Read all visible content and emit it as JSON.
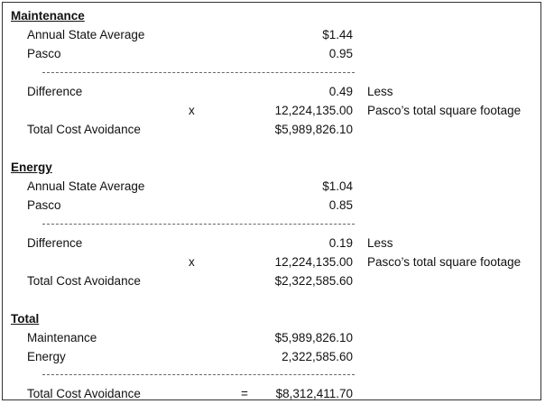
{
  "maintenance": {
    "heading": "Maintenance",
    "state_avg_label": "Annual State Average",
    "state_avg_value": "$1.44",
    "pasco_label": "Pasco",
    "pasco_value": "0.95",
    "difference_label": "Difference",
    "difference_value": "0.49",
    "difference_note": "Less",
    "multiply_sign": "x",
    "sqft_value": "12,224,135.00",
    "sqft_note": "Pasco’s total square footage",
    "total_label": "Total Cost Avoidance",
    "total_value": "$5,989,826.10"
  },
  "energy": {
    "heading": "Energy",
    "state_avg_label": "Annual State Average",
    "state_avg_value": "$1.04",
    "pasco_label": "Pasco",
    "pasco_value": "0.85",
    "difference_label": "Difference",
    "difference_value": "0.19",
    "difference_note": "Less",
    "multiply_sign": "x",
    "sqft_value": "12,224,135.00",
    "sqft_note": "Pasco’s total square footage",
    "total_label": "Total Cost Avoidance",
    "total_value": "$2,322,585.60"
  },
  "total": {
    "heading": "Total",
    "maintenance_label": "Maintenance",
    "maintenance_value": "$5,989,826.10",
    "energy_label": "Energy",
    "energy_value": "2,322,585.60",
    "total_label": "Total Cost Avoidance",
    "equals_sign": "=",
    "total_value": "$8,312,411.70"
  }
}
